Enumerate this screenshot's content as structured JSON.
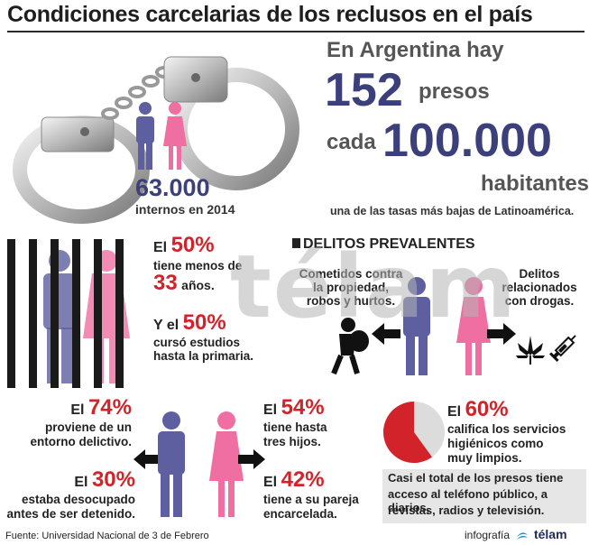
{
  "title": "Condiciones carcelarias de los reclusos en el país",
  "stats_header": {
    "line1": "En Argentina hay",
    "presos_number": "152",
    "presos_word": "presos",
    "cada_word": "cada",
    "cada_number": "100.000",
    "habitantes_word": "habitantes",
    "subline": "una de las tasas más bajas de Latinoamérica."
  },
  "interns": {
    "number": "63.000",
    "label": "internos en 2014"
  },
  "education": {
    "s1_prefix": "El",
    "s1_pct": "50%",
    "s1_line2": "tiene menos de",
    "s1_age_number": "33",
    "s1_age_word": "años.",
    "s2_prefix": "Y el",
    "s2_pct": "50%",
    "s2_line2": "cursó estudios",
    "s2_line3": "hasta la primaria."
  },
  "crimes": {
    "heading": "DELITOS PREVALENTES",
    "left_text_l1": "Cometidos contra",
    "left_text_l2": "la propiedad,",
    "left_text_l3": "robos y hurtos.",
    "right_text_l1": "Delitos",
    "right_text_l2": "relacionados",
    "right_text_l3": "con drogas."
  },
  "men_stats": {
    "a_prefix": "El",
    "a_pct": "74%",
    "a_l1": "proviene de un",
    "a_l2": "entorno delictivo.",
    "b_prefix": "El",
    "b_pct": "30%",
    "b_l1": "estaba desocupado",
    "b_l2": "antes de ser detenido."
  },
  "women_stats": {
    "a_prefix": "El",
    "a_pct": "54%",
    "a_l1": "tiene hasta",
    "a_l2": "tres hijos.",
    "b_prefix": "El",
    "b_pct": "42%",
    "b_l1": "tiene a su pareja",
    "b_l2": "encarcelada."
  },
  "hygiene": {
    "prefix": "El",
    "pct": "60%",
    "value_fraction": 0.6,
    "l1": "califica los servicios",
    "l2": "higiénicos como",
    "l3": "muy limpios."
  },
  "access_box": {
    "l1": "Casi el total de los presos tiene",
    "l2": "acceso al teléfono público, a diarios,",
    "l3": "revistas, radios y televisión."
  },
  "footer": {
    "source": "Fuente: Universidad Nacional de 3 de Febrero",
    "credit_prefix": "infografía",
    "credit_brand": "télam"
  },
  "watermark": "télam",
  "colors": {
    "navy": "#3b3f7a",
    "red": "#d2232a",
    "male_figure": "#5d5fa0",
    "female_figure": "#ef6fa2",
    "pie_fill": "#d2232a",
    "pie_rest": "#dcdcdc",
    "box_grey": "#e6e6e6"
  },
  "icons": [
    "handcuffs-icon",
    "male-figure-icon",
    "female-figure-icon",
    "thief-icon",
    "cannabis-leaf-icon",
    "syringe-icon",
    "arrow-left-icon",
    "arrow-right-icon",
    "pie-chart-icon",
    "telam-logo-icon"
  ]
}
